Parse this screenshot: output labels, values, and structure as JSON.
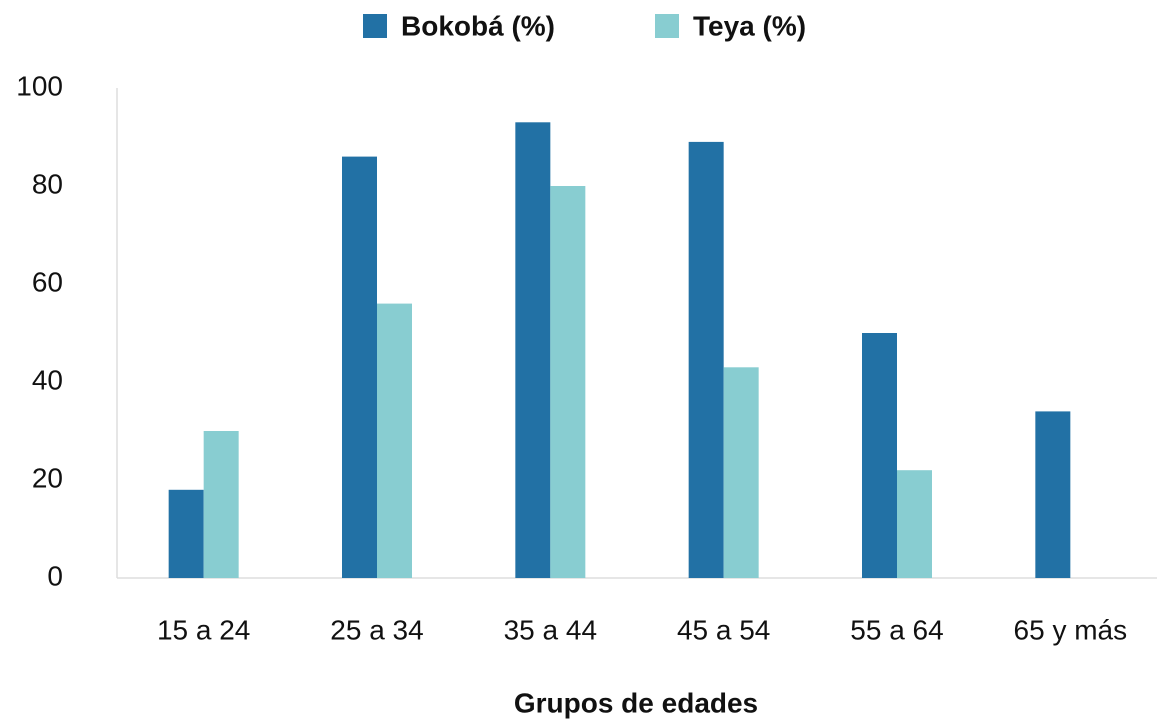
{
  "chart_data": {
    "type": "bar",
    "categories": [
      "15 a 24",
      "25 a 34",
      "35 a 44",
      "45 a 54",
      "55 a 64",
      "65 y más"
    ],
    "series": [
      {
        "name": "Bokobá (%)",
        "color": "#2271a5",
        "values": [
          18,
          86,
          93,
          89,
          50,
          34
        ]
      },
      {
        "name": "Teya (%)",
        "color": "#88cdd1",
        "values": [
          30,
          56,
          80,
          43,
          22,
          null
        ]
      }
    ],
    "x_label": "Grupos de edades",
    "ylim": [
      0,
      100
    ],
    "yticks": [
      0,
      20,
      40,
      60,
      80,
      100
    ],
    "grid": false,
    "legend": "top"
  }
}
